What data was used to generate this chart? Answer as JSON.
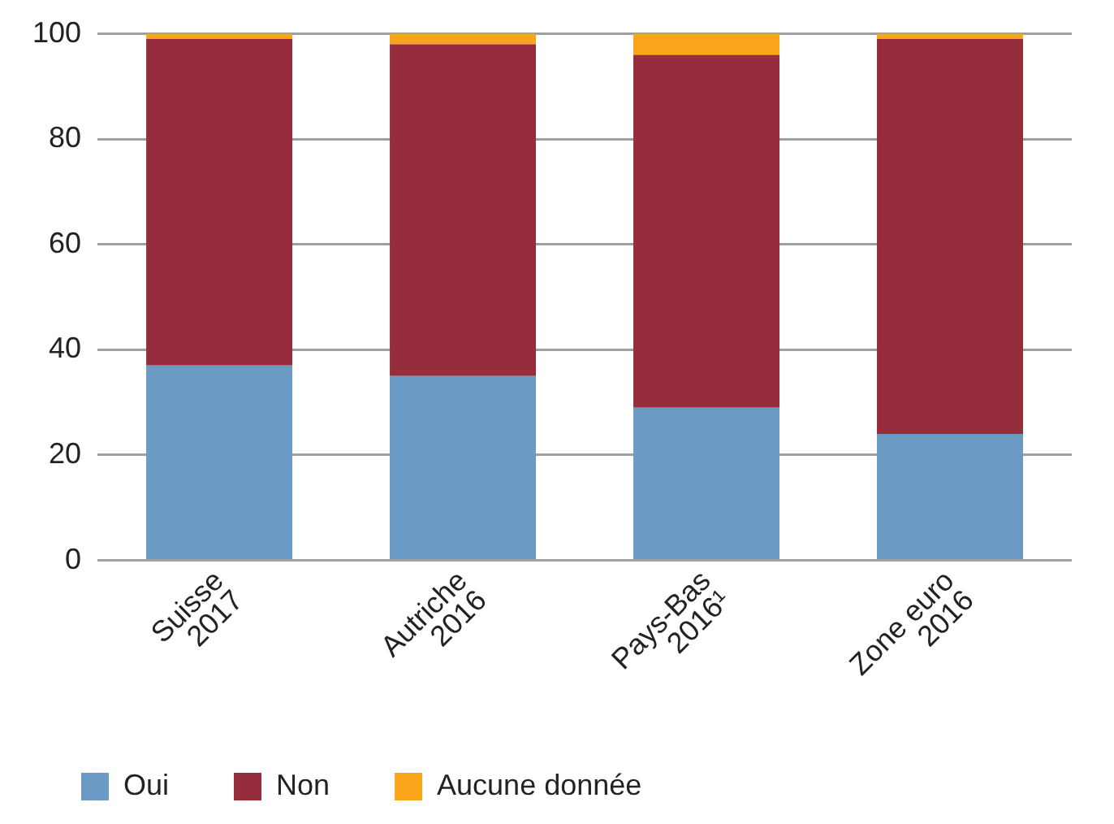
{
  "chart_data": {
    "type": "bar",
    "stacked": true,
    "categories": [
      "Suisse\n2017",
      "Autriche\n2016",
      "Pays-Bas\n2016¹",
      "Zone euro\n2016"
    ],
    "series": [
      {
        "name": "Oui",
        "color": "#6b9ac4",
        "values": [
          37,
          35,
          29,
          24
        ]
      },
      {
        "name": "Non",
        "color": "#962d3c",
        "values": [
          62,
          63,
          67,
          75
        ]
      },
      {
        "name": "Aucune donnée",
        "color": "#f9a51a",
        "values": [
          1,
          2,
          4,
          1
        ]
      }
    ],
    "ylim": [
      0,
      100
    ],
    "yticks": [
      0,
      20,
      40,
      60,
      80,
      100
    ],
    "grid": "y",
    "legend": "bottom left"
  }
}
